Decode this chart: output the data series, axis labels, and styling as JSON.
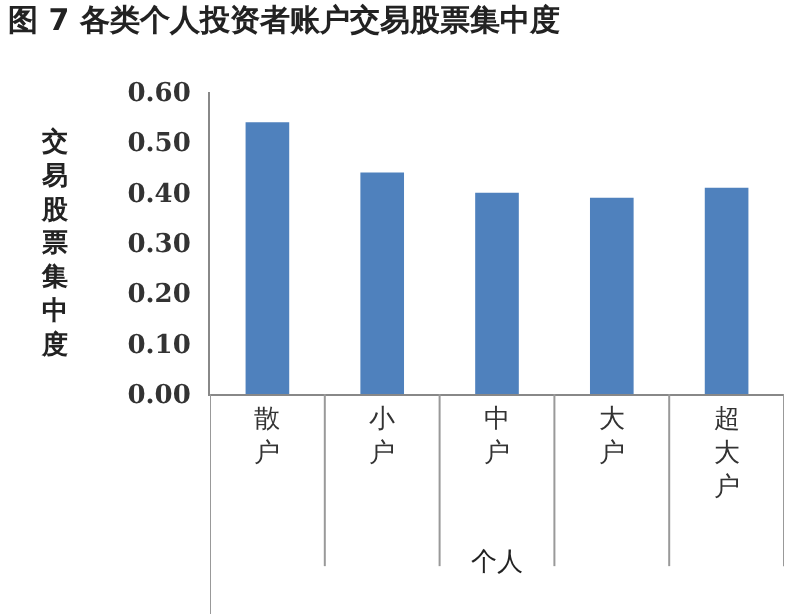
{
  "chart_data": {
    "type": "bar",
    "title": "图 7 各类个人投资者账户交易股票集中度",
    "categories": [
      "散户",
      "小户",
      "中户",
      "大户",
      "超大户"
    ],
    "values": [
      0.54,
      0.44,
      0.4,
      0.39,
      0.41
    ],
    "color": "#4f81bd",
    "xlabel": "个人",
    "ylabel": "交易股票集中度",
    "ylim": [
      0,
      0.6
    ],
    "yticks": [
      {
        "value": 0,
        "label": "0.00"
      },
      {
        "value": 0.1,
        "label": "0.10"
      },
      {
        "value": 0.2,
        "label": "0.20"
      },
      {
        "value": 0.3,
        "label": "0.30"
      },
      {
        "value": 0.4,
        "label": "0.40"
      },
      {
        "value": 0.5,
        "label": "0.50"
      },
      {
        "value": 0.6,
        "label": "0.60"
      }
    ],
    "grid": false,
    "legend": false
  }
}
